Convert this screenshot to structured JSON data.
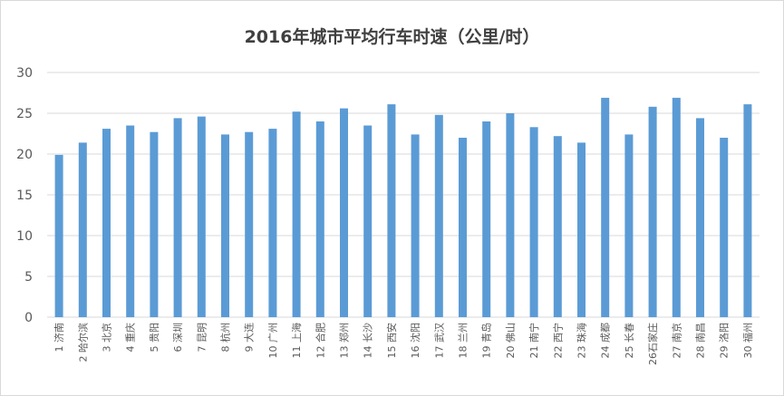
{
  "colors": {
    "bar": "#5b9bd5",
    "grid": "#d9d9d9",
    "text": "#595959",
    "title": "#404040"
  },
  "chart_data": {
    "type": "bar",
    "title": "2016年城市平均行车时速（公里/时）",
    "xlabel": "",
    "ylabel": "",
    "ylim": [
      0,
      30
    ],
    "yticks": [
      0,
      5,
      10,
      15,
      20,
      25,
      30
    ],
    "grid": true,
    "categories": [
      "1 济南",
      "2 哈尔滨",
      "3 北京",
      "4 重庆",
      "5 贵阳",
      "6 深圳",
      "7 昆明",
      "8 杭州",
      "9 大连",
      "10 广州",
      "11 上海",
      "12 合肥",
      "13 郑州",
      "14 长沙",
      "15 西安",
      "16 沈阳",
      "17 武汉",
      "18 兰州",
      "19 青岛",
      "20 佛山",
      "21 南宁",
      "22 西宁",
      "23 珠海",
      "24 成都",
      "25 长春",
      "26石家庄",
      "27 南京",
      "28 南昌",
      "29 洛阳",
      "30 福州"
    ],
    "values": [
      19.9,
      21.4,
      23.1,
      23.5,
      22.7,
      24.4,
      24.6,
      22.4,
      22.7,
      23.1,
      25.2,
      24.0,
      25.6,
      23.5,
      26.1,
      22.4,
      24.8,
      22.0,
      24.0,
      25.0,
      23.3,
      22.2,
      21.4,
      26.9,
      22.4,
      25.8,
      26.9,
      24.4,
      22.0,
      26.1
    ]
  }
}
